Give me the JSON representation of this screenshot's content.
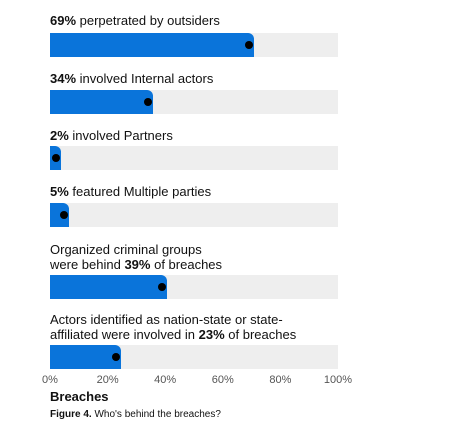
{
  "chart_data": {
    "type": "bar",
    "orientation": "horizontal",
    "categories": [
      "outsiders",
      "Internal actors",
      "Partners",
      "Multiple parties",
      "Organized criminal groups",
      "nation-state or state-affiliated"
    ],
    "series": [
      {
        "values": [
          69,
          34,
          2,
          5,
          39,
          23
        ]
      }
    ],
    "xlim": [
      0,
      100
    ],
    "xticks": [
      "0%",
      "20%",
      "40%",
      "60%",
      "80%",
      "100%"
    ],
    "xlabel": "Breaches",
    "grid": false,
    "legend": "none",
    "colors": {
      "bar": "#0a74da",
      "track": "#eeeeee",
      "marker": "#000000"
    },
    "bars": [
      {
        "pre": "",
        "bold": "69%",
        "post": " perpetrated by outsiders"
      },
      {
        "pre": "",
        "bold": "34%",
        "post": " involved Internal actors"
      },
      {
        "pre": "",
        "bold": "2%",
        "post": " involved Partners"
      },
      {
        "pre": "",
        "bold": "5%",
        "post": " featured Multiple parties"
      },
      {
        "pre": "Organized criminal groups\nwere behind ",
        "bold": "39%",
        "post": " of breaches"
      },
      {
        "pre": "Actors identified as nation-state or state-\naffiliated were involved in ",
        "bold": "23%",
        "post": " of breaches"
      }
    ]
  },
  "caption": {
    "label": "Figure 4.",
    "text": " Who's behind the breaches?"
  }
}
